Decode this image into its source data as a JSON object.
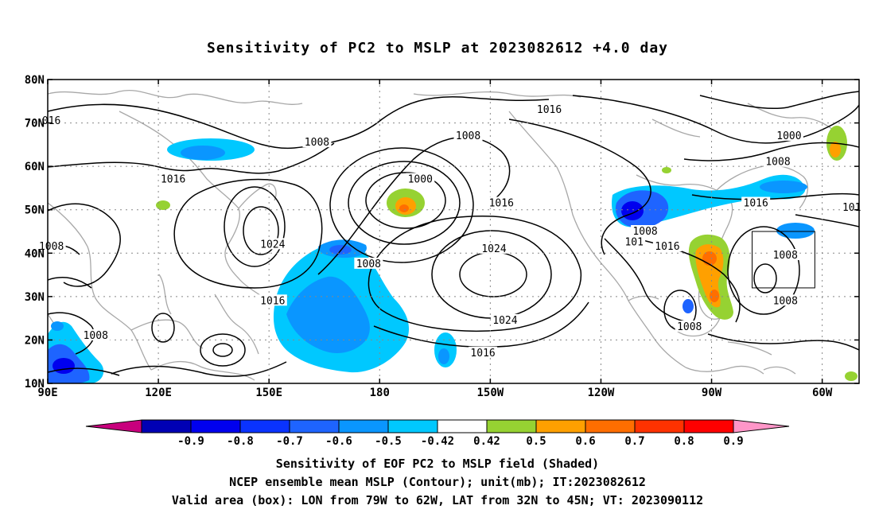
{
  "title": "Sensitivity of PC2 to MSLP at 2023082612 +4.0 day",
  "map": {
    "lon_range": [
      90,
      310
    ],
    "lat_range": [
      10,
      80
    ],
    "lat_ticks": [
      {
        "v": 80,
        "t": "80N"
      },
      {
        "v": 70,
        "t": "70N"
      },
      {
        "v": 60,
        "t": "60N"
      },
      {
        "v": 50,
        "t": "50N"
      },
      {
        "v": 40,
        "t": "40N"
      },
      {
        "v": 30,
        "t": "30N"
      },
      {
        "v": 20,
        "t": "20N"
      },
      {
        "v": 10,
        "t": "10N"
      }
    ],
    "lon_ticks": [
      {
        "v": 90,
        "t": "90E"
      },
      {
        "v": 120,
        "t": "120E"
      },
      {
        "v": 150,
        "t": "150E"
      },
      {
        "v": 180,
        "t": "180"
      },
      {
        "v": 210,
        "t": "150W"
      },
      {
        "v": 240,
        "t": "120W"
      },
      {
        "v": 270,
        "t": "90W"
      },
      {
        "v": 300,
        "t": "60W"
      }
    ],
    "valid_box": {
      "lon": [
        281,
        298
      ],
      "lat": [
        32,
        45
      ]
    },
    "contour_labels": [
      {
        "t": "016",
        "lon": 91,
        "lat": 70.5
      },
      {
        "t": "1016",
        "lon": 226,
        "lat": 73
      },
      {
        "t": "1008",
        "lon": 204,
        "lat": 67
      },
      {
        "t": "1008",
        "lon": 163,
        "lat": 65.5
      },
      {
        "t": "1000",
        "lon": 291,
        "lat": 67
      },
      {
        "t": "1008",
        "lon": 288,
        "lat": 61
      },
      {
        "t": "1016",
        "lon": 124,
        "lat": 57
      },
      {
        "t": "1000",
        "lon": 191,
        "lat": 57
      },
      {
        "t": "1016",
        "lon": 213,
        "lat": 51.5
      },
      {
        "t": "1016",
        "lon": 282,
        "lat": 51.5
      },
      {
        "t": "101",
        "lon": 308,
        "lat": 50.5
      },
      {
        "t": "1008",
        "lon": 91,
        "lat": 41.5
      },
      {
        "t": "1024",
        "lon": 151,
        "lat": 42
      },
      {
        "t": "1008",
        "lon": 252,
        "lat": 45
      },
      {
        "t": "101",
        "lon": 249,
        "lat": 42.5
      },
      {
        "t": "1016",
        "lon": 258,
        "lat": 41.5
      },
      {
        "t": "1024",
        "lon": 211,
        "lat": 41
      },
      {
        "t": "1008",
        "lon": 177,
        "lat": 37.5
      },
      {
        "t": "1008",
        "lon": 290,
        "lat": 39.5
      },
      {
        "t": "1016",
        "lon": 151,
        "lat": 29
      },
      {
        "t": "1008",
        "lon": 290,
        "lat": 29
      },
      {
        "t": "1024",
        "lon": 214,
        "lat": 24.5
      },
      {
        "t": "1008",
        "lon": 264,
        "lat": 23
      },
      {
        "t": "1008",
        "lon": 103,
        "lat": 21
      },
      {
        "t": "1016",
        "lon": 208,
        "lat": 17
      }
    ]
  },
  "colorbar": {
    "labels": [
      "-0.9",
      "-0.8",
      "-0.7",
      "-0.6",
      "-0.5",
      "-0.42",
      "0.42",
      "0.5",
      "0.6",
      "0.7",
      "0.8",
      "0.9"
    ],
    "colors": [
      "#0000b4",
      "#0000ee",
      "#0a33ff",
      "#1e64ff",
      "#0a96ff",
      "#00c8ff",
      "#ffffff",
      "#96d232",
      "#ffa000",
      "#ff6e00",
      "#ff3200",
      "#ff0000"
    ],
    "low_end": "#c8007d",
    "high_end": "#ff96c8"
  },
  "captions": [
    "Sensitivity of EOF PC2 to MSLP field (Shaded)",
    "NCEP ensemble mean MSLP (Contour); unit(mb); IT:2023082612",
    "Valid area (box): LON from 79W to 62W, LAT from 32N to 45N; VT: 2023090112"
  ]
}
